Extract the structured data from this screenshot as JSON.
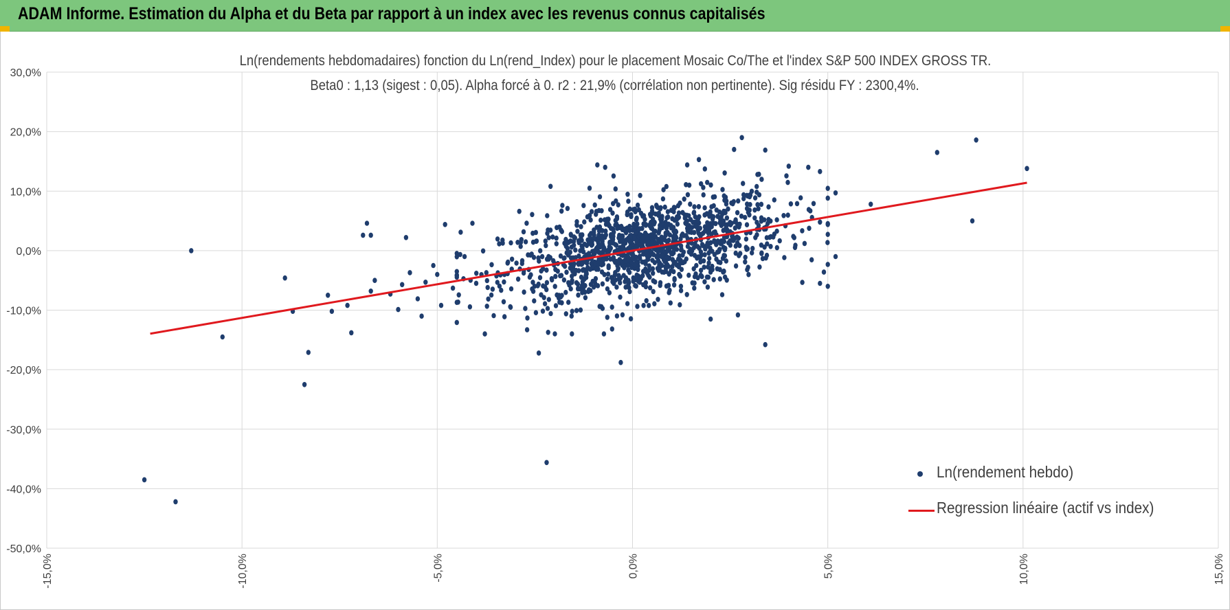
{
  "banner": {
    "title": "ADAM Informe. Estimation du Alpha et du Beta par rapport à un index avec les revenus connus capitalisés",
    "background": "#7dc67d",
    "corner_color": "#f0b400"
  },
  "chart_data": {
    "type": "scatter",
    "title": "Ln(rendements hebdomadaires) fonction du Ln(rend_Index) pour le placement Mosaic Co/The et l'index S&P 500 INDEX GROSS TR.",
    "subtitle": "Beta0 : 1,13 (sigest : 0,05).  Alpha forcé à 0. r2 : 21,9% (corrélation non pertinente). Sig résidu FY : 2300,4%.",
    "xlabel": "",
    "ylabel": "",
    "xlim": [
      -0.15,
      0.15
    ],
    "ylim": [
      -0.5,
      0.3
    ],
    "x_ticks": [
      -0.15,
      -0.1,
      -0.05,
      0.0,
      0.05,
      0.1,
      0.15
    ],
    "y_ticks": [
      0.3,
      0.2,
      0.1,
      0.0,
      -0.1,
      -0.2,
      -0.3,
      -0.4,
      -0.5
    ],
    "x_tick_labels": [
      "-15,0%",
      "-10,0%",
      "-5,0%",
      "0,0%",
      "5,0%",
      "10,0%",
      "15,0%"
    ],
    "y_tick_labels": [
      "30,0%",
      "20,0%",
      "10,0%",
      "0,0%",
      "-10,0%",
      "-20,0%",
      "-30,0%",
      "-40,0%",
      "-50,0%"
    ],
    "grid": true,
    "legend_position": "bottom-right",
    "series": [
      {
        "name": "Ln(rendement hebdo)",
        "type": "scatter",
        "color": "#1f3d6d",
        "cluster": {
          "count": 1300,
          "x_mean": 0.003,
          "x_sd": 0.018,
          "beta": 1.13,
          "residual_sd": 0.04
        },
        "points": [
          [
            -0.125,
            -0.385
          ],
          [
            -0.117,
            -0.422
          ],
          [
            -0.113,
            0.0
          ],
          [
            -0.105,
            -0.145
          ],
          [
            -0.089,
            -0.046
          ],
          [
            -0.087,
            -0.102
          ],
          [
            -0.084,
            -0.225
          ],
          [
            -0.083,
            -0.171
          ],
          [
            -0.078,
            -0.075
          ],
          [
            -0.077,
            -0.102
          ],
          [
            -0.073,
            -0.092
          ],
          [
            -0.072,
            -0.138
          ],
          [
            -0.069,
            0.026
          ],
          [
            -0.068,
            0.046
          ],
          [
            -0.067,
            0.026
          ],
          [
            -0.067,
            -0.068
          ],
          [
            -0.066,
            -0.05
          ],
          [
            -0.062,
            -0.073
          ],
          [
            -0.06,
            -0.099
          ],
          [
            -0.059,
            -0.057
          ],
          [
            -0.058,
            0.022
          ],
          [
            -0.057,
            -0.037
          ],
          [
            -0.055,
            -0.081
          ],
          [
            -0.054,
            -0.11
          ],
          [
            -0.053,
            -0.053
          ],
          [
            -0.051,
            -0.025
          ],
          [
            -0.05,
            -0.04
          ],
          [
            -0.049,
            -0.092
          ],
          [
            -0.048,
            0.044
          ],
          [
            -0.046,
            -0.063
          ],
          [
            -0.045,
            -0.087
          ],
          [
            -0.044,
            0.031
          ],
          [
            -0.043,
            -0.01
          ],
          [
            -0.041,
            0.046
          ],
          [
            -0.04,
            -0.038
          ],
          [
            -0.022,
            -0.356
          ],
          [
            -0.024,
            -0.172
          ],
          [
            -0.003,
            -0.188
          ],
          [
            -0.027,
            -0.133
          ],
          [
            0.02,
            -0.115
          ],
          [
            0.034,
            -0.158
          ],
          [
            0.027,
            -0.108
          ],
          [
            0.026,
            0.17
          ],
          [
            0.028,
            0.19
          ],
          [
            0.034,
            0.169
          ],
          [
            0.014,
            0.144
          ],
          [
            0.017,
            0.153
          ],
          [
            0.032,
            0.128
          ],
          [
            0.04,
            0.142
          ],
          [
            0.045,
            0.14
          ],
          [
            0.048,
            0.133
          ],
          [
            0.048,
            0.048
          ],
          [
            0.048,
            -0.055
          ],
          [
            0.05,
            -0.06
          ],
          [
            0.052,
            0.097
          ],
          [
            0.052,
            -0.01
          ],
          [
            0.049,
            -0.036
          ],
          [
            0.061,
            0.078
          ],
          [
            0.078,
            0.165
          ],
          [
            0.088,
            0.186
          ],
          [
            0.087,
            0.05
          ],
          [
            0.101,
            0.138
          ],
          [
            -0.009,
            0.144
          ],
          [
            -0.007,
            0.14
          ],
          [
            -0.021,
            0.108
          ],
          [
            -0.011,
            0.105
          ],
          [
            -0.029,
            0.066
          ]
        ]
      },
      {
        "name": "Regression linéaire (actif vs index)",
        "type": "line",
        "color": "#e0191e",
        "beta": 1.13,
        "alpha": 0,
        "x_range": [
          -0.1235,
          0.101
        ]
      }
    ]
  }
}
